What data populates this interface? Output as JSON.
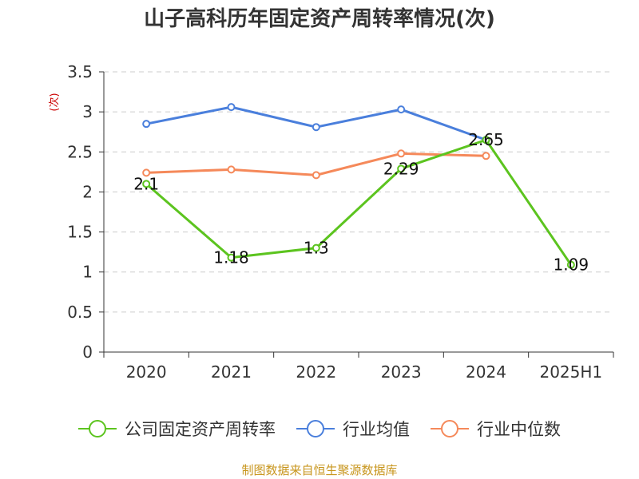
{
  "chart_data": {
    "type": "line",
    "title": "山子高科历年固定资产周转率情况(次)",
    "ylabel": "(次)",
    "xlabel": "",
    "categories": [
      "2020",
      "2021",
      "2022",
      "2023",
      "2024",
      "2025H1"
    ],
    "ylim": [
      0,
      3.5
    ],
    "yticks": [
      "0",
      "0.5",
      "1",
      "1.5",
      "2",
      "2.5",
      "3",
      "3.5"
    ],
    "grid": true,
    "legend_position": "bottom",
    "series": [
      {
        "name": "公司固定资产周转率",
        "color": "#5cc41f",
        "values": [
          2.1,
          1.18,
          1.3,
          2.29,
          2.65,
          1.09
        ],
        "labels": [
          "2.1",
          "1.18",
          "1.3",
          "2.29",
          "2.65",
          "1.09"
        ]
      },
      {
        "name": "行业均值",
        "color": "#4a7fdc",
        "values": [
          2.85,
          3.06,
          2.81,
          3.03,
          2.65,
          null
        ]
      },
      {
        "name": "行业中位数",
        "color": "#f5895a",
        "values": [
          2.24,
          2.28,
          2.21,
          2.48,
          2.45,
          null
        ]
      }
    ]
  },
  "source": "制图数据来自恒生聚源数据库"
}
